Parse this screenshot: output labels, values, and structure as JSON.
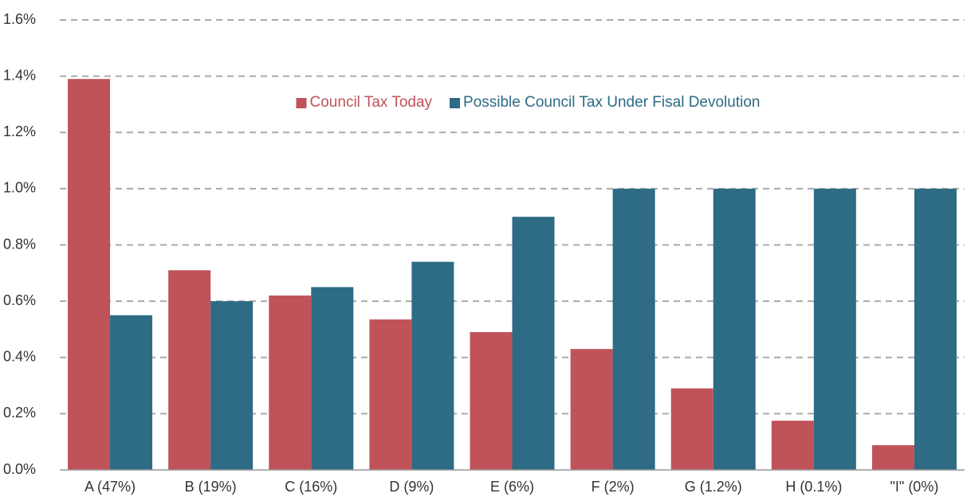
{
  "chart_data": {
    "type": "bar",
    "categories": [
      "A (47%)",
      "B (19%)",
      "C (16%)",
      "D (9%)",
      "E (6%)",
      "F (2%)",
      "G (1.2%)",
      "H (0.1%)",
      "\"I\" (0%)"
    ],
    "series": [
      {
        "name": "Council Tax Today",
        "color": "#c0525a",
        "values": [
          1.39,
          0.71,
          0.62,
          0.535,
          0.49,
          0.43,
          0.29,
          0.175,
          0.088
        ]
      },
      {
        "name": "Possible Council Tax Under Fisal Devolution",
        "color": "#2e6b84",
        "values": [
          0.55,
          0.6,
          0.65,
          0.74,
          0.9,
          1.0,
          1.0,
          1.0,
          1.0
        ]
      }
    ],
    "ylim": [
      0,
      1.6
    ],
    "yticks": [
      {
        "value": 0,
        "label": "0.0%"
      },
      {
        "value": 0.2,
        "label": "0.2%"
      },
      {
        "value": 0.4,
        "label": "0.4%"
      },
      {
        "value": 0.6,
        "label": "0.6%"
      },
      {
        "value": 0.8,
        "label": "0.8%"
      },
      {
        "value": 1.0,
        "label": "1.0%"
      },
      {
        "value": 1.2,
        "label": "1.2%"
      },
      {
        "value": 1.4,
        "label": "1.4%"
      },
      {
        "value": 1.6,
        "label": "1.6%"
      }
    ],
    "grid": true,
    "legend": "upper center"
  }
}
